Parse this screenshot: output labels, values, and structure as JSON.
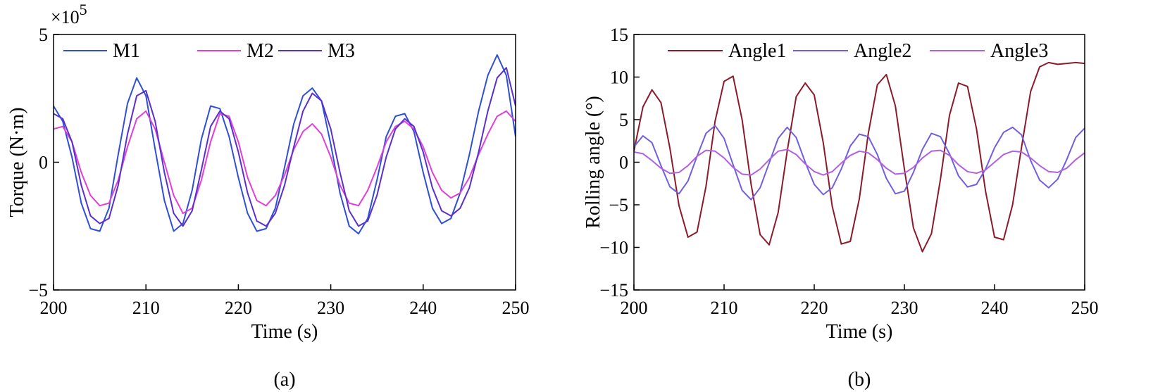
{
  "chart_data": [
    {
      "type": "line",
      "caption": "(a)",
      "multiplier": "×10",
      "multiplier_exponent": "5",
      "xlabel": "Time (s)",
      "ylabel": "Torque (N·m)",
      "xlim": [
        200,
        250
      ],
      "ylim": [
        -5,
        5
      ],
      "xticks": [
        200,
        210,
        220,
        230,
        240,
        250
      ],
      "yticks": [
        5,
        0,
        -5
      ],
      "ytick_labels": [
        "5",
        "0",
        "−5"
      ],
      "grid": false,
      "legend_position": "top-left",
      "series": [
        {
          "name": "M1",
          "color": "#2E4FD6",
          "x": [
            200,
            201,
            202,
            203,
            204,
            205,
            206,
            207,
            208,
            209,
            210,
            211,
            212,
            213,
            214,
            215,
            216,
            217,
            218,
            219,
            220,
            221,
            222,
            223,
            224,
            225,
            226,
            227,
            228,
            229,
            230,
            231,
            232,
            233,
            234,
            235,
            236,
            237,
            238,
            239,
            240,
            241,
            242,
            243,
            244,
            245,
            246,
            247,
            248,
            249,
            250
          ],
          "values": [
            2.2,
            1.6,
            0.2,
            -1.6,
            -2.6,
            -2.7,
            -1.8,
            0.3,
            2.3,
            3.3,
            2.6,
            0.5,
            -1.5,
            -2.7,
            -2.4,
            -1.1,
            0.9,
            2.2,
            2.1,
            1.0,
            -0.6,
            -2.0,
            -2.7,
            -2.6,
            -1.8,
            -0.2,
            1.5,
            2.6,
            2.9,
            2.4,
            0.7,
            -1.2,
            -2.5,
            -2.8,
            -2.2,
            -0.7,
            1.0,
            1.8,
            1.9,
            1.2,
            -0.4,
            -1.8,
            -2.4,
            -2.2,
            -1.2,
            0.3,
            2.0,
            3.4,
            4.2,
            3.4,
            1.0
          ]
        },
        {
          "name": "M2",
          "color": "#E040D8",
          "x": [
            200,
            201,
            202,
            203,
            204,
            205,
            206,
            207,
            208,
            209,
            210,
            211,
            212,
            213,
            214,
            215,
            216,
            217,
            218,
            219,
            220,
            221,
            222,
            223,
            224,
            225,
            226,
            227,
            228,
            229,
            230,
            231,
            232,
            233,
            234,
            235,
            236,
            237,
            238,
            239,
            240,
            241,
            242,
            243,
            244,
            245,
            246,
            247,
            248,
            249,
            250
          ],
          "values": [
            1.3,
            1.4,
            0.8,
            -0.4,
            -1.3,
            -1.7,
            -1.6,
            -0.7,
            0.6,
            1.7,
            2.0,
            1.3,
            0.0,
            -1.3,
            -2.0,
            -1.8,
            -0.7,
            0.8,
            1.9,
            1.8,
            0.8,
            -0.6,
            -1.5,
            -1.7,
            -1.3,
            -0.5,
            0.5,
            1.2,
            1.5,
            1.1,
            0.2,
            -0.9,
            -1.6,
            -1.7,
            -1.1,
            -0.2,
            0.8,
            1.4,
            1.6,
            1.3,
            0.6,
            -0.4,
            -1.1,
            -1.4,
            -1.2,
            -0.6,
            0.3,
            1.1,
            1.8,
            2.0,
            1.6
          ]
        },
        {
          "name": "M3",
          "color": "#5A2FD0",
          "x": [
            200,
            201,
            202,
            203,
            204,
            205,
            206,
            207,
            208,
            209,
            210,
            211,
            212,
            213,
            214,
            215,
            216,
            217,
            218,
            219,
            220,
            221,
            222,
            223,
            224,
            225,
            226,
            227,
            228,
            229,
            230,
            231,
            232,
            233,
            234,
            235,
            236,
            237,
            238,
            239,
            240,
            241,
            242,
            243,
            244,
            245,
            246,
            247,
            248,
            249,
            250
          ],
          "values": [
            1.9,
            1.7,
            0.8,
            -0.9,
            -2.1,
            -2.4,
            -2.2,
            -0.9,
            1.1,
            2.6,
            2.8,
            1.6,
            -0.4,
            -2.0,
            -2.5,
            -1.9,
            -0.3,
            1.4,
            2.0,
            1.7,
            0.4,
            -1.2,
            -2.3,
            -2.5,
            -2.0,
            -0.9,
            0.6,
            2.0,
            2.7,
            2.4,
            1.3,
            -0.4,
            -1.9,
            -2.5,
            -2.3,
            -1.3,
            0.2,
            1.3,
            1.7,
            1.4,
            0.4,
            -1.0,
            -1.9,
            -2.1,
            -1.8,
            -1.0,
            0.4,
            2.0,
            3.3,
            3.7,
            2.2
          ]
        }
      ]
    },
    {
      "type": "line",
      "caption": "(b)",
      "xlabel": "Time (s)",
      "ylabel": "Rolling angle (°)",
      "xlim": [
        200,
        250
      ],
      "ylim": [
        -15,
        15
      ],
      "xticks": [
        200,
        210,
        220,
        230,
        240,
        250
      ],
      "yticks": [
        15,
        10,
        5,
        0,
        -5,
        -10,
        -15
      ],
      "ytick_labels": [
        "15",
        "10",
        "5",
        "0",
        "−5",
        "−10",
        "−15"
      ],
      "grid": false,
      "legend_position": "top",
      "series": [
        {
          "name": "Angle1",
          "color": "#8B1A2B",
          "x": [
            200,
            201,
            202,
            203,
            204,
            205,
            206,
            207,
            208,
            209,
            210,
            211,
            212,
            213,
            214,
            215,
            216,
            217,
            218,
            219,
            220,
            221,
            222,
            223,
            224,
            225,
            226,
            227,
            228,
            229,
            230,
            231,
            232,
            233,
            234,
            235,
            236,
            237,
            238,
            239,
            240,
            241,
            242,
            243,
            244,
            245,
            246,
            247,
            248,
            249,
            250
          ],
          "values": [
            1.3,
            6.5,
            8.5,
            7.0,
            1.6,
            -5.1,
            -8.8,
            -8.2,
            -2.8,
            4.8,
            9.5,
            10.1,
            5.0,
            -2.6,
            -8.5,
            -9.7,
            -5.9,
            1.3,
            7.7,
            9.3,
            7.9,
            2.3,
            -5.2,
            -9.6,
            -9.3,
            -4.3,
            3.4,
            9.1,
            10.3,
            6.6,
            -0.8,
            -7.7,
            -10.5,
            -8.4,
            -2.0,
            5.5,
            9.3,
            8.9,
            3.9,
            -3.4,
            -8.8,
            -9.1,
            -5.0,
            1.8,
            8.3,
            11.2,
            11.7,
            11.5,
            11.6,
            11.7,
            11.6
          ]
        },
        {
          "name": "Angle2",
          "color": "#7060E0",
          "x": [
            200,
            201,
            202,
            203,
            204,
            205,
            206,
            207,
            208,
            209,
            210,
            211,
            212,
            213,
            214,
            215,
            216,
            217,
            218,
            219,
            220,
            221,
            222,
            223,
            224,
            225,
            226,
            227,
            228,
            229,
            230,
            231,
            232,
            233,
            234,
            235,
            236,
            237,
            238,
            239,
            240,
            241,
            242,
            243,
            244,
            245,
            246,
            247,
            248,
            249,
            250
          ],
          "values": [
            1.8,
            3.1,
            2.3,
            -0.4,
            -2.9,
            -3.7,
            -2.2,
            0.7,
            3.4,
            4.3,
            2.8,
            -0.3,
            -3.3,
            -4.4,
            -3.0,
            -0.1,
            2.8,
            4.1,
            2.9,
            0.0,
            -2.6,
            -3.8,
            -3.0,
            -0.8,
            1.9,
            3.3,
            3.0,
            0.9,
            -1.9,
            -3.7,
            -3.4,
            -1.2,
            1.5,
            3.4,
            3.0,
            1.0,
            -1.6,
            -2.9,
            -2.6,
            -0.8,
            1.7,
            3.5,
            4.1,
            3.2,
            0.2,
            -2.1,
            -3.0,
            -2.0,
            0.3,
            2.9,
            4.0
          ]
        },
        {
          "name": "Angle3",
          "color": "#B060E0",
          "x": [
            200,
            201,
            202,
            203,
            204,
            205,
            206,
            207,
            208,
            209,
            210,
            211,
            212,
            213,
            214,
            215,
            216,
            217,
            218,
            219,
            220,
            221,
            222,
            223,
            224,
            225,
            226,
            227,
            228,
            229,
            230,
            231,
            232,
            233,
            234,
            235,
            236,
            237,
            238,
            239,
            240,
            241,
            242,
            243,
            244,
            245,
            246,
            247,
            248,
            249,
            250
          ],
          "values": [
            1.2,
            1.0,
            0.2,
            -0.7,
            -1.3,
            -1.2,
            -0.4,
            0.7,
            1.4,
            1.3,
            0.5,
            -0.6,
            -1.4,
            -1.5,
            -0.8,
            0.3,
            1.3,
            1.5,
            0.9,
            -0.2,
            -1.1,
            -1.5,
            -1.1,
            -0.1,
            0.8,
            1.3,
            1.1,
            0.3,
            -0.7,
            -1.4,
            -1.3,
            -0.6,
            0.5,
            1.3,
            1.4,
            0.8,
            -0.3,
            -1.1,
            -1.3,
            -0.9,
            0.0,
            0.9,
            1.3,
            1.2,
            0.5,
            -0.4,
            -1.1,
            -1.2,
            -0.7,
            0.3,
            1.1
          ]
        }
      ]
    }
  ]
}
